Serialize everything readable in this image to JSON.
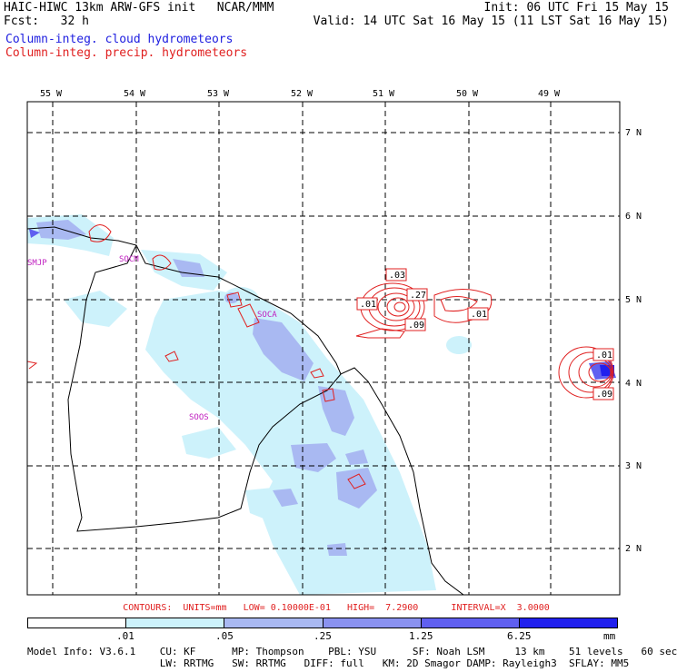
{
  "header": {
    "title": "HAIC-HIWC 13km ARW-GFS init   NCAR/MMM",
    "init": "Init: 06 UTC Fri 15 May 15",
    "fcst_label": "Fcst:   32 h",
    "valid": "Valid: 14 UTC Sat 16 May 15 (11 LST Sat 16 May 15)"
  },
  "legend": {
    "cloud": "Column-integ. cloud hydrometeors",
    "precip": "Column-integ. precip. hydrometeors",
    "cloud_color": "#2020e0",
    "precip_color": "#e02020"
  },
  "map": {
    "lon_labels": [
      "55 W",
      "54 W",
      "53 W",
      "52 W",
      "51 W",
      "50 W",
      "49 W"
    ],
    "lat_labels": [
      "7 N",
      "6 N",
      "5 N",
      "4 N",
      "3 N",
      "2 N"
    ],
    "stations": [
      "SMJP",
      "SOCM",
      "SOCA",
      "SOOS"
    ],
    "contour_labels": [
      ".03",
      ".27",
      ".01",
      ".09",
      ".01",
      ".01",
      ".09"
    ]
  },
  "contours_line": "CONTOURS:  UNITS=mm   LOW= 0.10000E-01   HIGH=  7.2900      INTERVAL=X  3.0000",
  "colorbar": {
    "labels": [
      ".01",
      ".05",
      ".25",
      "1.25",
      "6.25",
      "mm"
    ],
    "colors": [
      "#ffffff",
      "#cdf2fb",
      "#a9b9f2",
      "#8a92f0",
      "#6060f0",
      "#2020ee"
    ]
  },
  "model_info": {
    "line1": "Model Info: V3.6.1    CU: KF      MP: Thompson    PBL: YSU      SF: Noah LSM     13 km    51 levels   60 sec",
    "line2": "                      LW: RRTMG   SW: RRTMG   DIFF: full   KM: 2D Smagor DAMP: Rayleigh3  SFLAY: MM5"
  }
}
